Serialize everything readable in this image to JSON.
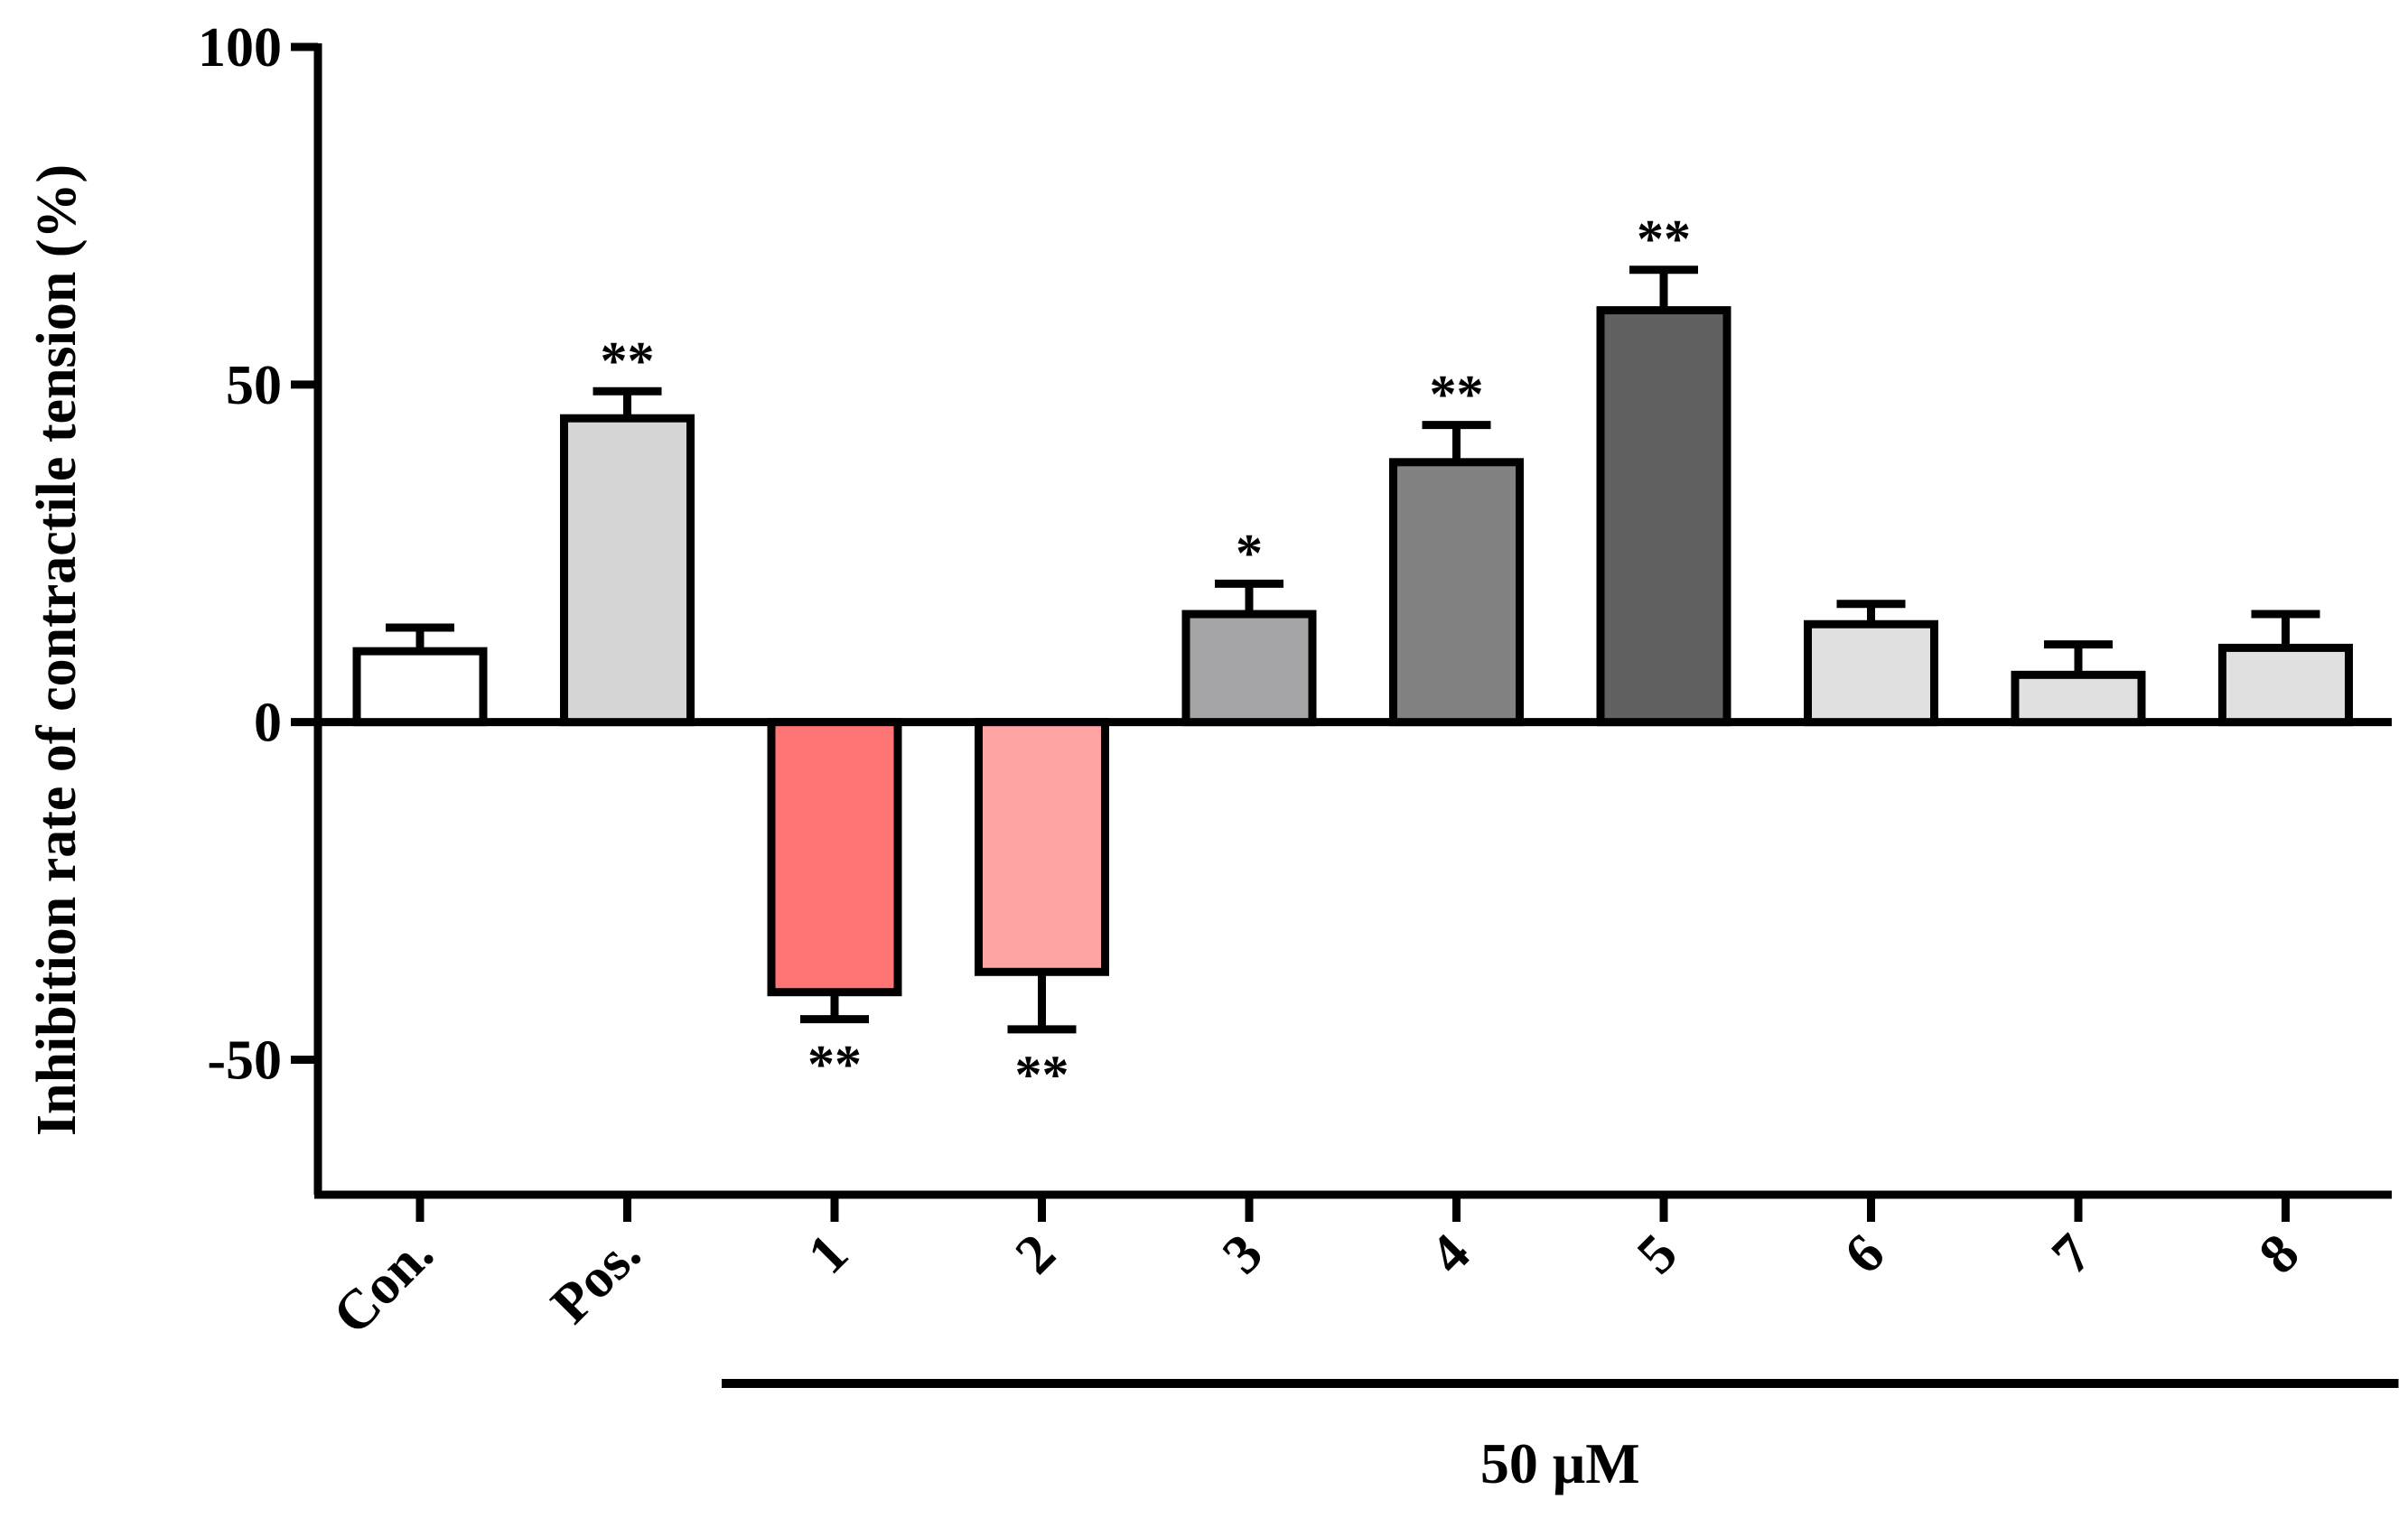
{
  "chart_data": {
    "type": "bar",
    "title": "",
    "xlabel": "",
    "ylabel": "Inhibition rate of contractile tension (%)",
    "ylim": [
      -70,
      100
    ],
    "yticks": [
      {
        "value": -50,
        "label": "-50"
      },
      {
        "value": 0,
        "label": "0"
      },
      {
        "value": 50,
        "label": "50"
      },
      {
        "value": 100,
        "label": "100"
      }
    ],
    "categories": [
      "Con.",
      "Pos.",
      "1",
      "2",
      "3",
      "4",
      "5",
      "6",
      "7",
      "8"
    ],
    "values": [
      10.5,
      45,
      -40,
      -37,
      16,
      38.5,
      61,
      14.5,
      7,
      11
    ],
    "errors": [
      3.5,
      4,
      4,
      8.5,
      4.5,
      5.5,
      6,
      3,
      4.5,
      5
    ],
    "colors": [
      "#ffffff",
      "#d6d6d6",
      "#ff7575",
      "#ffa3a3",
      "#a5a5a8",
      "#828282",
      "#616161",
      "#e0e0e0",
      "#e0e0e0",
      "#e0e0e0"
    ],
    "significance": [
      "",
      "**",
      "**",
      "**",
      "*",
      "**",
      "**",
      "",
      "",
      ""
    ],
    "group": {
      "label": "50 μM",
      "from_category": "1",
      "to_category": "8"
    }
  }
}
